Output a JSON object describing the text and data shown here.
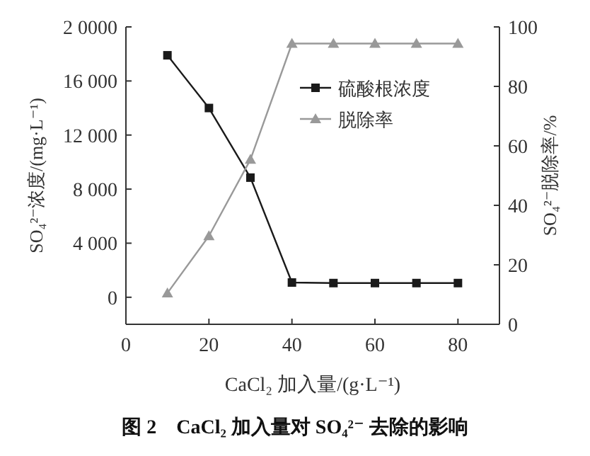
{
  "chart_data": {
    "type": "line",
    "title": "图 2　CaCl₂ 加入量对 SO₄²⁻ 去除的影响",
    "xlabel": "CaCl₂ 加入量/(g·L⁻¹)",
    "ylabel": "SO₄²⁻浓度/(mg·L⁻¹)",
    "y2label": "SO₄²⁻脱除率/%",
    "x": [
      10,
      20,
      30,
      40,
      50,
      60,
      70,
      80
    ],
    "series": [
      {
        "name": "硫酸根浓度",
        "color": "#1a1a1a",
        "marker": "square",
        "values": [
          17900,
          14000,
          8850,
          1090,
          1050,
          1050,
          1050,
          1050
        ]
      },
      {
        "name": "脱除率",
        "color": "#999999",
        "marker": "triangle",
        "axis": "y2",
        "values": [
          10.5,
          29.7,
          55.4,
          94.4,
          94.4,
          94.4,
          94.4,
          94.4
        ]
      }
    ],
    "xlim": [
      0,
      90
    ],
    "xticks": [
      0,
      20,
      40,
      60,
      80
    ],
    "ylim": [
      -2000,
      20000
    ],
    "yticks": [
      0,
      {
        "value": 4000,
        "label": "4 000"
      },
      {
        "value": 8000,
        "label": "8 000"
      },
      {
        "value": 12000,
        "label": "12 000"
      },
      {
        "value": 16000,
        "label": "16 000"
      },
      {
        "value": 20000,
        "label": "2 0000"
      }
    ],
    "y2lim": [
      0,
      100
    ],
    "y2ticks": [
      0,
      20,
      40,
      60,
      80,
      100
    ],
    "legend": "right",
    "grid": false,
    "line_style": "solid"
  }
}
